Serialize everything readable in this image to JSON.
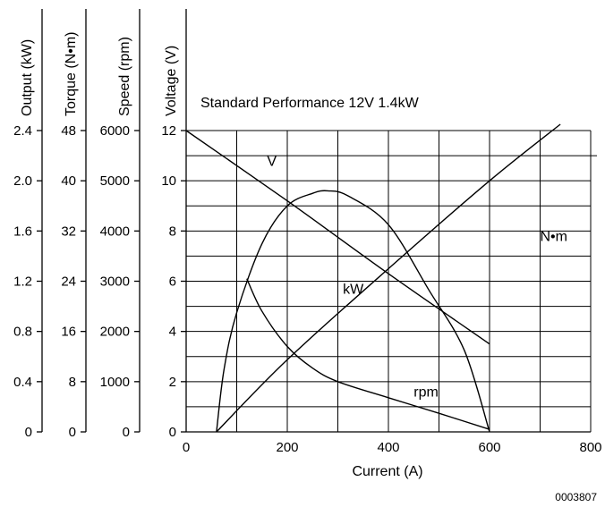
{
  "chart_data": {
    "type": "line",
    "title": "Standard Performance 12V 1.4kW",
    "figure_id": "0003807",
    "xlabel": "Current (A)",
    "xlim": [
      0,
      800
    ],
    "x_ticks": [
      "0",
      "200",
      "400",
      "600",
      "800"
    ],
    "grid": true,
    "y_axes": [
      {
        "key": "output",
        "label": "Output (kW)",
        "ylim": [
          0,
          2.4
        ],
        "ticks": [
          "0",
          "0.4",
          "0.8",
          "1.2",
          "1.6",
          "2.0",
          "2.4"
        ]
      },
      {
        "key": "torque",
        "label": "Torque (N•m)",
        "ylim": [
          0,
          48
        ],
        "ticks": [
          "0",
          "8",
          "16",
          "24",
          "32",
          "40",
          "48"
        ]
      },
      {
        "key": "speed",
        "label": "Speed (rpm)",
        "ylim": [
          0,
          6000
        ],
        "ticks": [
          "0",
          "1000",
          "2000",
          "3000",
          "4000",
          "5000",
          "6000"
        ]
      },
      {
        "key": "voltage",
        "label": "Voltage (V)",
        "ylim": [
          0,
          12
        ],
        "ticks": [
          "0",
          "2",
          "4",
          "6",
          "8",
          "10",
          "12"
        ]
      }
    ],
    "series": [
      {
        "name": "V",
        "axis": "voltage",
        "color": "#000000",
        "x": [
          0,
          200,
          400,
          600
        ],
        "y": [
          12,
          9.2,
          6.3,
          3.5
        ]
      },
      {
        "name": "N•m",
        "axis": "torque",
        "color": "#000000",
        "x": [
          60,
          200,
          400,
          600,
          740
        ],
        "y": [
          0,
          11.5,
          26,
          40,
          49
        ]
      },
      {
        "name": "kW",
        "axis": "output",
        "color": "#000000",
        "x": [
          60,
          75,
          100,
          150,
          200,
          250,
          280,
          320,
          400,
          480,
          550,
          600
        ],
        "y": [
          0,
          0.5,
          0.95,
          1.5,
          1.8,
          1.9,
          1.92,
          1.88,
          1.65,
          1.13,
          0.65,
          0
        ]
      },
      {
        "name": "rpm",
        "axis": "speed",
        "color": "#000000",
        "x": [
          120,
          150,
          200,
          250,
          300,
          400,
          500,
          600
        ],
        "y": [
          3050,
          2400,
          1700,
          1270,
          1000,
          680,
          370,
          50
        ]
      }
    ],
    "curve_labels": [
      {
        "series": "V",
        "text": "V",
        "x": 160,
        "y": 10.6,
        "axis": "voltage"
      },
      {
        "series": "N•m",
        "text": "N•m",
        "x": 700,
        "y": 7.6,
        "axis": "voltage"
      },
      {
        "series": "kW",
        "text": "kW",
        "x": 310,
        "y": 5.5,
        "axis": "voltage"
      },
      {
        "series": "rpm",
        "text": "rpm",
        "x": 450,
        "y": 1.4,
        "axis": "voltage"
      }
    ]
  }
}
